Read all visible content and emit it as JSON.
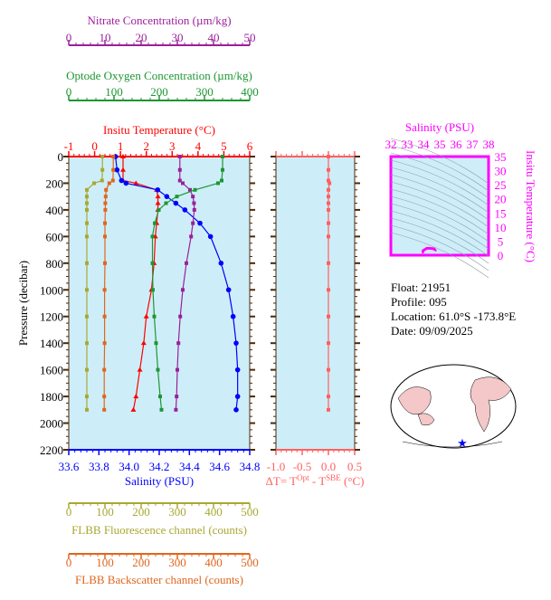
{
  "chart_data": {
    "type": "line",
    "colors": {
      "temperature": "#ff0000",
      "salinity": "#0000ff",
      "nitrate": "#9b1f9b",
      "oxygen": "#1e9632",
      "fluorescence": "#a8a832",
      "backscatter": "#e0661e",
      "deltaT": "#ff6060",
      "ts": "#ff00ff",
      "panel": "#cdeef8",
      "axis": "#4a2a0a"
    },
    "pressure_axis": {
      "label": "Pressure (decibar)",
      "range": [
        0,
        2200
      ],
      "ticks": [
        "0",
        "200",
        "400",
        "600",
        "800",
        "1000",
        "1200",
        "1400",
        "1600",
        "1800",
        "2000",
        "2200"
      ]
    },
    "axes": {
      "nitrate": {
        "label": "Nitrate Concentration (µm/kg)",
        "range": [
          0,
          50
        ],
        "ticks": [
          "0",
          "10",
          "20",
          "30",
          "40",
          "50"
        ]
      },
      "oxygen": {
        "label": "Optode Oxygen Concentration (µm/kg)",
        "range": [
          0,
          400
        ],
        "ticks": [
          "0",
          "100",
          "200",
          "300",
          "400"
        ]
      },
      "temperature": {
        "label": "Insitu Temperature (°C)",
        "range": [
          -1,
          6
        ],
        "ticks": [
          "-1",
          "0",
          "1",
          "2",
          "3",
          "4",
          "5",
          "6"
        ]
      },
      "salinity": {
        "label": "Salinity (PSU)",
        "range": [
          33.6,
          34.8
        ],
        "ticks": [
          "33.6",
          "33.8",
          "34.0",
          "34.2",
          "34.4",
          "34.6",
          "34.8"
        ]
      },
      "fluorescence": {
        "label": "FLBB Fluorescence channel (counts)",
        "range": [
          0,
          500
        ],
        "ticks": [
          "0",
          "100",
          "200",
          "300",
          "400",
          "500"
        ]
      },
      "backscatter": {
        "label": "FLBB Backscatter channel (counts)",
        "range": [
          0,
          500
        ],
        "ticks": [
          "0",
          "100",
          "200",
          "300",
          "400",
          "500"
        ]
      },
      "deltaT": {
        "label": "ΔT= T",
        "sup1": "Opt",
        "mid": " - T",
        "sup2": "SBE",
        "unit": " (°C)",
        "range": [
          -1.0,
          0.5
        ],
        "ticks": [
          "-1.0",
          "-0.5",
          "0.0",
          "0.5"
        ]
      }
    },
    "pressure": [
      0,
      100,
      180,
      200,
      250,
      300,
      350,
      400,
      500,
      600,
      800,
      1000,
      1200,
      1400,
      1600,
      1800,
      1900
    ],
    "series": [
      {
        "name": "temperature",
        "values": [
          1.1,
          1.1,
          1.1,
          1.6,
          2.4,
          2.45,
          2.45,
          2.45,
          2.4,
          2.35,
          2.3,
          2.2,
          2.0,
          1.9,
          1.75,
          1.6,
          1.5
        ]
      },
      {
        "name": "salinity",
        "values": [
          33.91,
          33.92,
          33.95,
          33.98,
          34.19,
          34.25,
          34.31,
          34.37,
          34.47,
          34.54,
          34.61,
          34.66,
          34.69,
          34.71,
          34.72,
          34.72,
          34.71
        ]
      },
      {
        "name": "nitrate",
        "values": [
          30.7,
          30.7,
          30.7,
          31.5,
          33.5,
          34.3,
          34.6,
          34.7,
          34.3,
          33.8,
          32.5,
          31.5,
          30.8,
          30.3,
          30,
          29.8,
          29.6
        ]
      },
      {
        "name": "oxygen",
        "values": [
          340,
          340,
          338,
          330,
          279,
          239,
          215,
          199,
          190,
          185,
          185,
          186,
          189,
          193,
          197,
          202,
          205
        ]
      },
      {
        "name": "fluorescence",
        "values": [
          93,
          93,
          92,
          70,
          50,
          50,
          50,
          50,
          50,
          50,
          50,
          50,
          50,
          50,
          50,
          50,
          50
        ]
      },
      {
        "name": "backscatter",
        "values": [
          123,
          123,
          122,
          112,
          103,
          102,
          101,
          101,
          100,
          100,
          100,
          99,
          99,
          99,
          98,
          98,
          98
        ]
      },
      {
        "name": "deltaT",
        "values": [
          0.0,
          0.0,
          0.0,
          0.02,
          0.0,
          0.0,
          0.0,
          0.0,
          0.0,
          0.0,
          0.0,
          0.0,
          0.0,
          0.0,
          0.0,
          0.0,
          0.0
        ]
      }
    ],
    "ts_diagram": {
      "xlabel": "Salinity (PSU)",
      "ylabel": "Insitu Temperature (°C)",
      "xrange": [
        32,
        38
      ],
      "yrange": [
        0,
        35
      ],
      "xticks": [
        "32",
        "33",
        "34",
        "35",
        "36",
        "37",
        "38"
      ],
      "yticks": [
        "0",
        "5",
        "10",
        "15",
        "20",
        "25",
        "30",
        "35"
      ]
    }
  },
  "info": {
    "float": "Float:  21951",
    "profile": "Profile:  095",
    "location": "Location:  61.0°S  -173.8°E",
    "date": "Date:  09/09/2025"
  }
}
